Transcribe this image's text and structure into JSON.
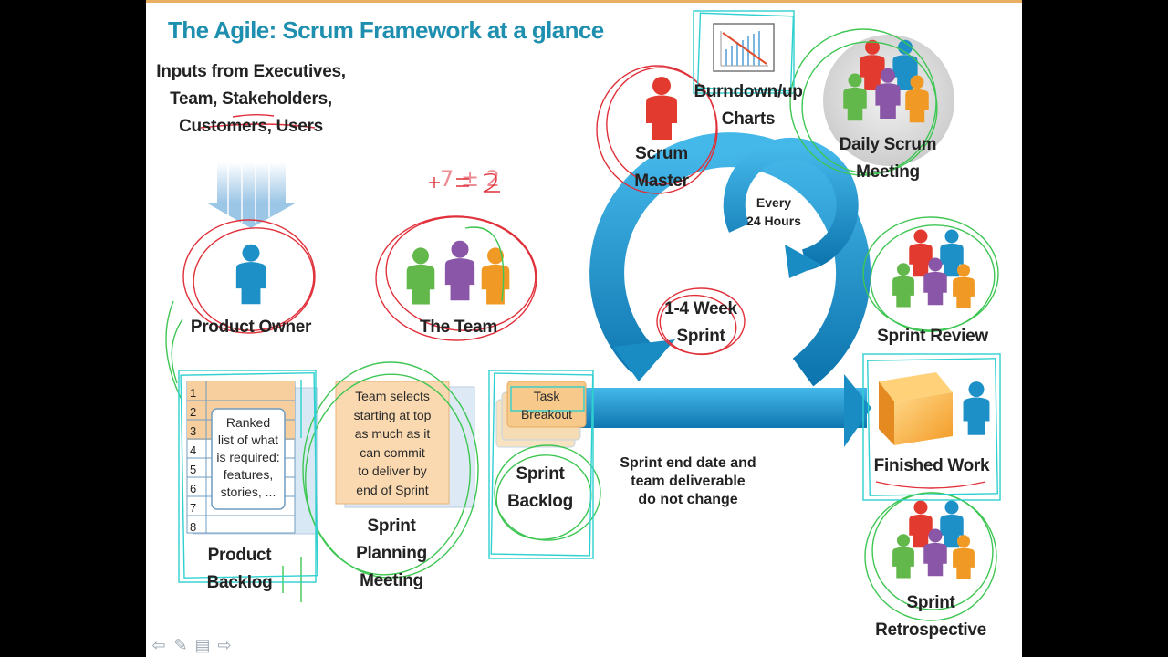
{
  "title": "The Agile: Scrum Framework at a glance",
  "inputs": {
    "line1": "Inputs from Executives,",
    "line2": "Team, Stakeholders,",
    "line3": "Customers, Users"
  },
  "product_owner": "Product Owner",
  "team": "The Team",
  "team_size_note": "7 ± 2",
  "scrum_master": {
    "line1": "Scrum",
    "line2": "Master"
  },
  "burndown": {
    "line1": "Burndown/up",
    "line2": "Charts"
  },
  "daily_scrum": {
    "line1": "Daily Scrum",
    "line2": "Meeting"
  },
  "every_24": {
    "line1": "Every",
    "line2": "24 Hours"
  },
  "sprint_cycle": {
    "line1": "1-4 Week",
    "line2": "Sprint"
  },
  "sprint_review": "Sprint Review",
  "finished_work": "Finished Work",
  "sprint_retro": {
    "line1": "Sprint",
    "line2": "Retrospective"
  },
  "product_backlog": {
    "rows": [
      "1",
      "2",
      "3",
      "4",
      "5",
      "6",
      "7",
      "8"
    ],
    "note": {
      "line1": "Ranked",
      "line2": "list of what",
      "line3": "is required:",
      "line4": "features,",
      "line5": "stories, ..."
    },
    "label1": "Product",
    "label2": "Backlog"
  },
  "planning": {
    "note": {
      "line1": "Team selects",
      "line2": "starting at top",
      "line3": "as much as it",
      "line4": "can commit",
      "line5": "to deliver by",
      "line6": "end of Sprint"
    },
    "label1": "Sprint",
    "label2": "Planning",
    "label3": "Meeting"
  },
  "sprint_backlog": {
    "task1": "Task",
    "task2": "Breakout",
    "label1": "Sprint",
    "label2": "Backlog"
  },
  "sprint_note": {
    "line1": "Sprint end date and",
    "line2": "team deliverable",
    "line3": "do not change"
  },
  "colors": {
    "title": "#1f8fb0",
    "arrow": "#1a8cc4",
    "backlog": "#f7cf9f",
    "annot_red": "#e0303a",
    "annot_green": "#3ec653",
    "annot_cyan": "#2fd0d0"
  },
  "nav": [
    "prev-icon",
    "pen-icon",
    "menu-icon",
    "next-icon"
  ]
}
